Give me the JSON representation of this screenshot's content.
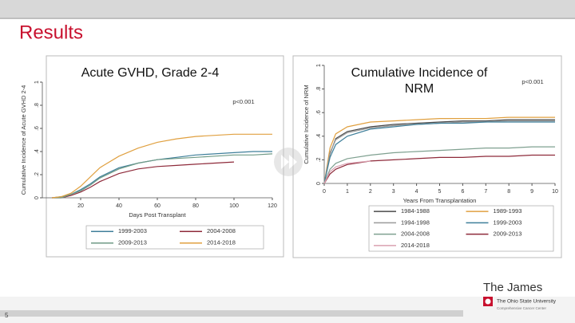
{
  "slide": {
    "title": "Results",
    "page": "5",
    "brand": "The James",
    "university": "The Ohio State University",
    "center": "Comprehensive Cancer Center"
  },
  "chart_data": [
    {
      "type": "line",
      "title": "Acute GVHD, Grade 2-4",
      "annotation": "p<0.001",
      "x_label": "Days Post Transplant",
      "y_label": "Cumulative Incidence of Acute GVHD 2-4",
      "x": [
        5,
        10,
        15,
        20,
        25,
        30,
        40,
        50,
        60,
        70,
        80,
        90,
        100,
        110,
        120
      ],
      "xlim": [
        0,
        120
      ],
      "xticks": [
        20,
        40,
        60,
        80,
        100,
        120
      ],
      "ylim": [
        0,
        1
      ],
      "yticks": [
        0,
        {
          "value": 0.2,
          "label": ".2"
        },
        {
          "value": 0.4,
          "label": ".4"
        },
        {
          "value": 0.6,
          "label": ".6"
        },
        {
          "value": 0.8,
          "label": ".8"
        },
        1
      ],
      "series": [
        {
          "name": "1999-2003",
          "color": "#3f7f9a",
          "values": [
            0,
            0.01,
            0.03,
            0.07,
            0.12,
            0.18,
            0.26,
            0.3,
            0.33,
            0.35,
            0.37,
            0.38,
            0.39,
            0.4,
            0.4
          ]
        },
        {
          "name": "2004-2008",
          "color": "#8e2a3a",
          "values": [
            0,
            0,
            0.02,
            0.05,
            0.09,
            0.14,
            0.21,
            0.25,
            0.27,
            0.28,
            0.29,
            0.3,
            0.31,
            null,
            null
          ]
        },
        {
          "name": "2009-2013",
          "color": "#6f9a86",
          "values": [
            0,
            0,
            0.03,
            0.06,
            0.11,
            0.17,
            0.25,
            0.3,
            0.33,
            0.34,
            0.35,
            0.36,
            0.37,
            0.37,
            0.38
          ]
        },
        {
          "name": "2014-2018",
          "color": "#e0a040",
          "values": [
            0,
            0.01,
            0.04,
            0.1,
            0.18,
            0.26,
            0.36,
            0.43,
            0.48,
            0.51,
            0.53,
            0.54,
            0.55,
            0.55,
            0.55
          ]
        }
      ]
    },
    {
      "type": "line",
      "title": "Cumulative Incidence of NRM",
      "annotation": "p<0.001",
      "x_label": "Years From Transplantation",
      "y_label": "Cumulative Incidence of NRM",
      "x": [
        0,
        0.25,
        0.5,
        1,
        2,
        3,
        4,
        5,
        6,
        7,
        8,
        9,
        10
      ],
      "xlim": [
        0,
        10
      ],
      "xticks": [
        0,
        1,
        2,
        3,
        4,
        5,
        6,
        7,
        8,
        9,
        10
      ],
      "ylim": [
        0,
        1
      ],
      "yticks": [
        0,
        {
          "value": 0.2,
          "label": ".2"
        },
        {
          "value": 0.4,
          "label": ".4"
        },
        {
          "value": 0.6,
          "label": ".6"
        },
        {
          "value": 0.8,
          "label": ".8"
        },
        1
      ],
      "series": [
        {
          "name": "1984-1988",
          "color": "#4a4a4a",
          "values": [
            0,
            0.25,
            0.38,
            0.44,
            0.48,
            0.5,
            0.51,
            0.52,
            0.53,
            0.53,
            0.54,
            0.54,
            0.54
          ]
        },
        {
          "name": "1989-1993",
          "color": "#e0a040",
          "values": [
            0,
            0.3,
            0.42,
            0.48,
            0.52,
            0.53,
            0.54,
            0.55,
            0.55,
            0.55,
            0.56,
            0.56,
            0.56
          ]
        },
        {
          "name": "1994-1998",
          "color": "#9a9a9a",
          "values": [
            0,
            0.26,
            0.37,
            0.43,
            0.47,
            0.49,
            0.5,
            0.51,
            0.52,
            0.52,
            0.53,
            0.53,
            0.53
          ]
        },
        {
          "name": "1999-2003",
          "color": "#3f7f9a",
          "values": [
            0,
            0.22,
            0.33,
            0.4,
            0.46,
            0.48,
            0.5,
            0.51,
            0.51,
            0.52,
            0.52,
            0.52,
            0.52
          ]
        },
        {
          "name": "2004-2008",
          "color": "#7fa090",
          "values": [
            0,
            0.12,
            0.17,
            0.21,
            0.24,
            0.26,
            0.27,
            0.28,
            0.29,
            0.3,
            0.3,
            0.31,
            0.31
          ]
        },
        {
          "name": "2009-2013",
          "color": "#8e2a3a",
          "values": [
            0,
            0.08,
            0.12,
            0.16,
            0.19,
            0.2,
            0.21,
            0.22,
            0.22,
            0.23,
            0.23,
            0.24,
            0.24
          ]
        },
        {
          "name": "2014-2018",
          "color": "#d9a0b0",
          "values": [
            0,
            0.1,
            0.14,
            0.17,
            0.19,
            null,
            null,
            null,
            null,
            null,
            null,
            null,
            null
          ]
        }
      ]
    }
  ]
}
